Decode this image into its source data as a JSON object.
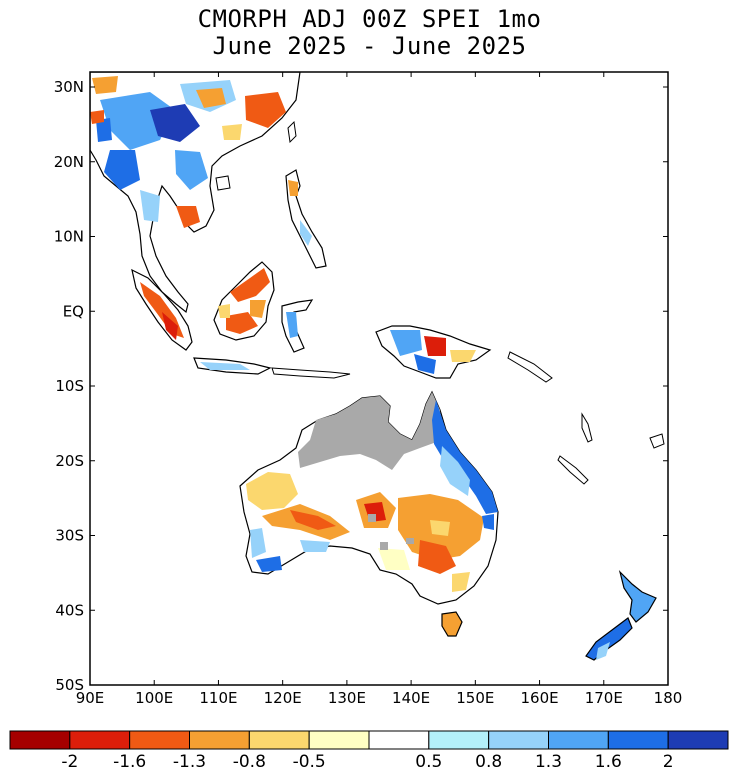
{
  "title": {
    "line1": "CMORPH ADJ 00Z SPEI 1mo",
    "line2": "June 2025 - June 2025"
  },
  "map": {
    "region": "Southeast Asia / Australia / New Zealand",
    "lon_range": [
      90,
      180
    ],
    "lat_range": [
      -50,
      32
    ],
    "lat_ticks": [
      {
        "value": 30,
        "label": "30N"
      },
      {
        "value": 20,
        "label": "20N"
      },
      {
        "value": 10,
        "label": "10N"
      },
      {
        "value": 0,
        "label": "EQ"
      },
      {
        "value": -10,
        "label": "10S"
      },
      {
        "value": -20,
        "label": "20S"
      },
      {
        "value": -30,
        "label": "30S"
      },
      {
        "value": -40,
        "label": "40S"
      },
      {
        "value": -50,
        "label": "50S"
      }
    ],
    "lon_ticks": [
      {
        "value": 90,
        "label": "90E"
      },
      {
        "value": 100,
        "label": "100E"
      },
      {
        "value": 110,
        "label": "110E"
      },
      {
        "value": 120,
        "label": "120E"
      },
      {
        "value": 130,
        "label": "130E"
      },
      {
        "value": 140,
        "label": "140E"
      },
      {
        "value": 150,
        "label": "150E"
      },
      {
        "value": 160,
        "label": "160E"
      },
      {
        "value": 170,
        "label": "170E"
      },
      {
        "value": 180,
        "label": "180"
      }
    ],
    "missing_color": "#a9a9a9",
    "coastline_color": "#000000"
  },
  "colorbar": {
    "colors": [
      "#a50000",
      "#dc1e0a",
      "#f05a14",
      "#f5a032",
      "#fbd76e",
      "#ffffc4",
      "#ffffff",
      "#b4f0fa",
      "#96d2fa",
      "#50a5f5",
      "#1e6ee6",
      "#1e3cb4"
    ],
    "labels": [
      "-2",
      "-1.6",
      "-1.3",
      "-0.8",
      "-0.5",
      "0.5",
      "0.8",
      "1.3",
      "1.6",
      "2"
    ]
  }
}
